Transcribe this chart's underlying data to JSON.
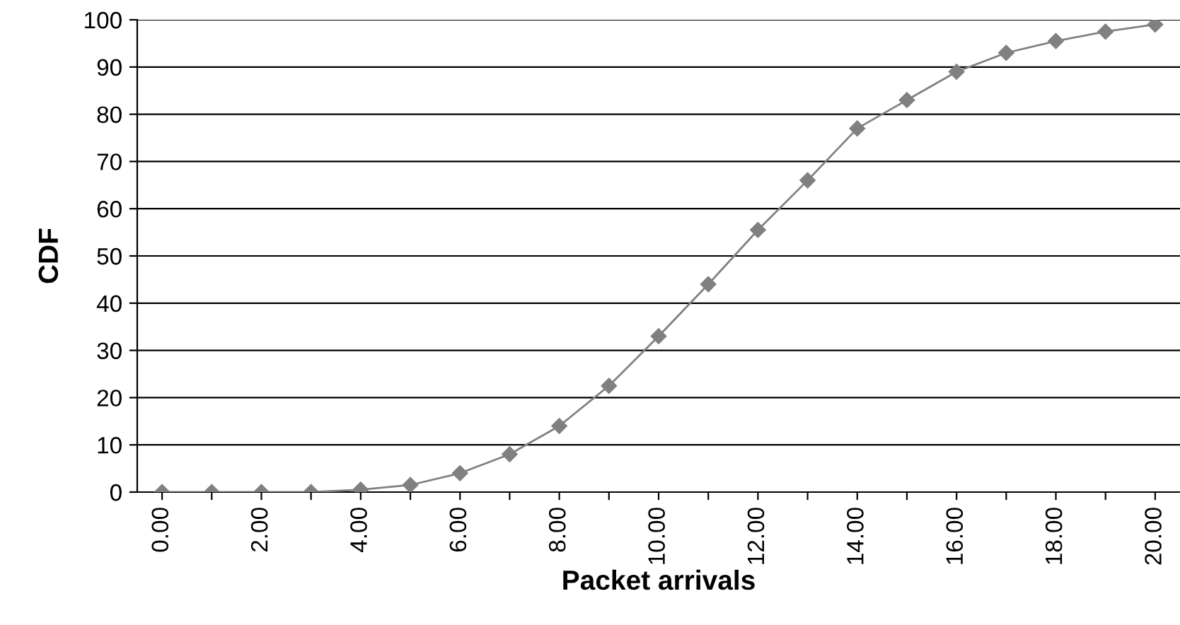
{
  "chart_data": {
    "type": "line",
    "xlabel": "Packet arrivals",
    "ylabel": "CDF",
    "x": [
      0,
      1,
      2,
      3,
      4,
      5,
      6,
      7,
      8,
      9,
      10,
      11,
      12,
      13,
      14,
      15,
      16,
      17,
      18,
      19,
      20
    ],
    "series": [
      {
        "color": "#808080",
        "values": [
          0,
          0,
          0,
          0,
          0.5,
          1.5,
          4,
          8,
          14,
          22.5,
          33,
          44,
          55.5,
          66,
          77,
          83,
          89,
          93,
          95.5,
          97.5,
          99
        ]
      }
    ],
    "xlim": [
      -0.5,
      20.5
    ],
    "xticks": [
      {
        "value": 0,
        "label": "0.00"
      },
      {
        "value": 1,
        "label": null
      },
      {
        "value": 2,
        "label": "2.00"
      },
      {
        "value": 3,
        "label": null
      },
      {
        "value": 4,
        "label": "4.00"
      },
      {
        "value": 5,
        "label": null
      },
      {
        "value": 6,
        "label": "6.00"
      },
      {
        "value": 7,
        "label": null
      },
      {
        "value": 8,
        "label": "8.00"
      },
      {
        "value": 9,
        "label": null
      },
      {
        "value": 10,
        "label": "10.00"
      },
      {
        "value": 11,
        "label": null
      },
      {
        "value": 12,
        "label": "12.00"
      },
      {
        "value": 13,
        "label": null
      },
      {
        "value": 14,
        "label": "14.00"
      },
      {
        "value": 15,
        "label": null
      },
      {
        "value": 16,
        "label": "16.00"
      },
      {
        "value": 17,
        "label": null
      },
      {
        "value": 18,
        "label": "18.00"
      },
      {
        "value": 19,
        "label": null
      },
      {
        "value": 20,
        "label": "20.00"
      }
    ],
    "ylim": [
      0,
      100
    ],
    "yticks": [
      0,
      10,
      20,
      30,
      40,
      50,
      60,
      70,
      80,
      90,
      100
    ],
    "grid": "y",
    "marker": "diamond",
    "line_style": "solid",
    "legend": false
  }
}
